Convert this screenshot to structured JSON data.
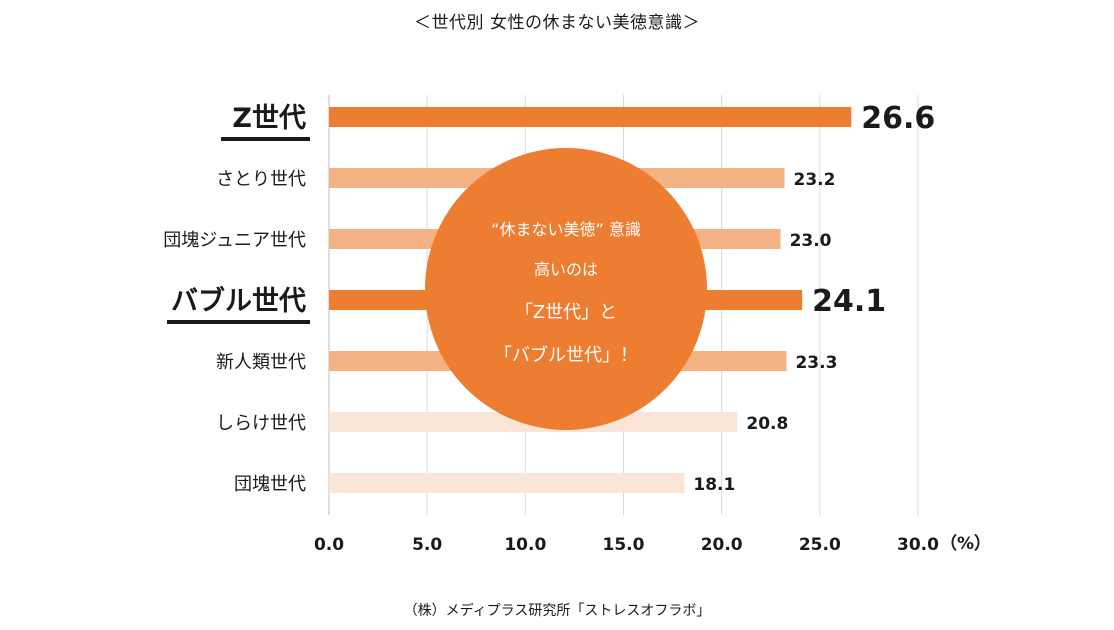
{
  "page": {
    "title": "＜世代別 女性の休まない美徳意識＞",
    "source": "（株）メディプラス研究所「ストレスオフラボ」"
  },
  "chart_data": {
    "type": "bar",
    "orientation": "horizontal",
    "title": "＜世代別 女性の休まない美徳意識＞",
    "xlabel": "",
    "ylabel": "",
    "unit": "（%）",
    "xlim": [
      0,
      30
    ],
    "xticks": [
      "0.0",
      "5.0",
      "10.0",
      "15.0",
      "20.0",
      "25.0",
      "30.0"
    ],
    "grid": "vertical",
    "categories": [
      "Z世代",
      "さとり世代",
      "団塊ジュニア世代",
      "バブル世代",
      "新人類世代",
      "しらけ世代",
      "団塊世代"
    ],
    "values": [
      26.6,
      23.2,
      23.0,
      24.1,
      23.3,
      20.8,
      18.1
    ],
    "value_labels": [
      "26.6",
      "23.2",
      "23.0",
      "24.1",
      "23.3",
      "20.8",
      "18.1"
    ],
    "highlighted": [
      true,
      false,
      false,
      true,
      false,
      false,
      false
    ],
    "bar_colors": [
      "#ed7d31",
      "#f4b183",
      "#f4b183",
      "#ed7d31",
      "#f4b183",
      "#fbe5d6",
      "#fbe5d6"
    ],
    "callout": {
      "lines": [
        "“休まない美徳” 意識",
        "高いのは",
        "「Z世代」と",
        "「バブル世代」！"
      ],
      "color": "#ed7d31",
      "text_color": "#ffffff"
    }
  }
}
